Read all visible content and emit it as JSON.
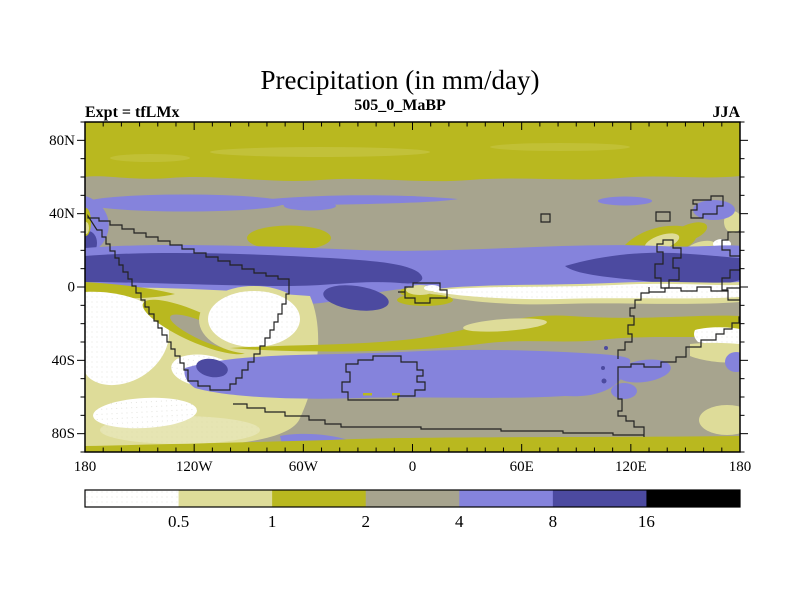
{
  "header": {
    "title": "Precipitation (in mm/day)",
    "subtitle": "505_0_MaBP",
    "experiment": "Expt = tfLMx",
    "season": "JJA"
  },
  "axes": {
    "lat_ticks": [
      "80N",
      "40N",
      "0",
      "40S",
      "80S"
    ],
    "lon_ticks": [
      "180",
      "120W",
      "60W",
      "0",
      "60E",
      "120E",
      "180"
    ]
  },
  "colorbar": {
    "labels": [
      "0.5",
      "1",
      "2",
      "4",
      "8",
      "16"
    ],
    "segment_colors": [
      "#ffffff",
      "#dedc99",
      "#b9b81f",
      "#a7a48e",
      "#8583dc",
      "#4c4aa0",
      "#000000"
    ]
  },
  "chart_data": {
    "type": "heatmap",
    "subtype": "filled_contour_world_map",
    "title": "Precipitation (in mm/day)",
    "subtitle": "505_0_MaBP",
    "experiment": "Expt = tfLMx",
    "season": "JJA",
    "units": "mm/day",
    "contour_levels": [
      0.5,
      1,
      2,
      4,
      8,
      16
    ],
    "bins": [
      "<0.5",
      "0.5-1",
      "1-2",
      "2-4",
      "4-8",
      "8-16",
      ">16"
    ],
    "bin_colors": [
      "#ffffff",
      "#dedc99",
      "#b9b81f",
      "#a7a48e",
      "#8583dc",
      "#4c4aa0",
      "#000000"
    ],
    "lon_axis": {
      "range_deg": [
        -180,
        180
      ],
      "tick_labels": [
        "180",
        "120W",
        "60W",
        "0",
        "60E",
        "120E",
        "180"
      ],
      "minor_tick_deg": 10
    },
    "lat_axis": {
      "range_deg": [
        -90,
        90
      ],
      "tick_labels": [
        "80N",
        "40N",
        "0",
        "40S",
        "80S"
      ],
      "minor_tick_deg": 10
    },
    "legend_position": "bottom",
    "grid": false,
    "features": [
      "olive band 1-2 mm/day across high northern latitudes 60N-90N",
      "gray 2-4 mm/day belt across northern mid-latitudes",
      "periwinkle 4-8 mm/day storm-track streaks near 45N",
      "olive dry patches near 25N over central ocean and eastern landmass",
      "dark blue 8-16 mm/day ITCZ band just north of the equator",
      "white <0.5 mm/day equatorial band in the eastern half",
      "large white subtropical dry zones in the southern hemisphere near 10S-30S",
      "periwinkle 4-8 mm/day band along 40S-55S with small 8-16 cores",
      "gray 2-4 mm/day Antarctic belt with olive band along 80S-90S",
      "stepped black model-grid paleo-coastlines (Cambrian, 505 Ma BP)"
    ]
  }
}
